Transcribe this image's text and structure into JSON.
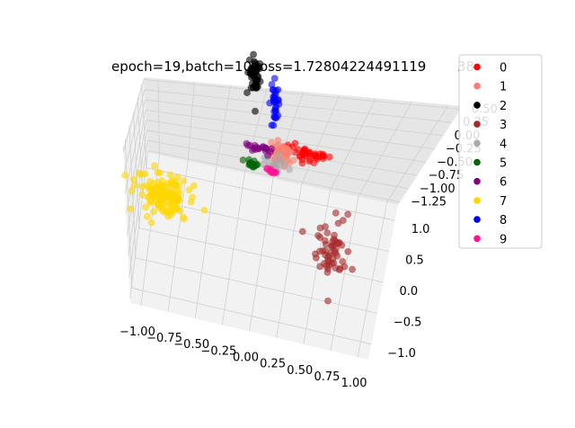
{
  "chart_data": {
    "type": "scatter",
    "title": "epoch=19,batch=10,loss=1.72804224491119",
    "title_hidden_suffix": "38",
    "projection": "3d",
    "xlabel": "",
    "ylabel": "",
    "zlabel": "",
    "xlim": [
      -1.1,
      1.1
    ],
    "ylim": [
      -1.25,
      1.25
    ],
    "zlim": [
      -1.3,
      0.65
    ],
    "x_ticks": [
      "−1.00",
      "−0.75",
      "−0.50",
      "−0.25",
      "0.00",
      "0.25",
      "0.50",
      "0.75",
      "1.00"
    ],
    "y_ticks": [
      "−1.0",
      "−0.5",
      "0.0",
      "0.5",
      "1.0"
    ],
    "z_ticks": [
      "−1.25",
      "−1.00",
      "−0.75",
      "−0.50",
      "−0.25",
      "0.00",
      "0.25",
      "0.50"
    ],
    "grid": true,
    "legend_position": "right",
    "series": [
      {
        "name": "0",
        "color": "#ff0000",
        "center": [
          0.45,
          0.15,
          0.05
        ],
        "spread": [
          0.1,
          0.05,
          0.03
        ],
        "count": 40
      },
      {
        "name": "1",
        "color": "#fa8072",
        "center": [
          0.22,
          0.1,
          0.0
        ],
        "spread": [
          0.06,
          0.05,
          0.05
        ],
        "count": 40
      },
      {
        "name": "2",
        "color": "#000000",
        "center": [
          -0.08,
          0.85,
          0.35
        ],
        "spread": [
          0.03,
          0.03,
          0.14
        ],
        "count": 45
      },
      {
        "name": "3",
        "color": "#a52a2a",
        "center": [
          0.72,
          -0.3,
          -0.8
        ],
        "spread": [
          0.08,
          0.06,
          0.18
        ],
        "count": 55
      },
      {
        "name": "4",
        "color": "#a9a9a9",
        "center": [
          0.2,
          0.05,
          -0.1
        ],
        "spread": [
          0.06,
          0.04,
          0.04
        ],
        "count": 15
      },
      {
        "name": "5",
        "color": "#006400",
        "center": [
          -0.05,
          0.05,
          -0.18
        ],
        "spread": [
          0.04,
          0.02,
          0.02
        ],
        "count": 15
      },
      {
        "name": "6",
        "color": "#800080",
        "center": [
          0.02,
          0.05,
          0.05
        ],
        "spread": [
          0.06,
          0.02,
          0.02
        ],
        "count": 20
      },
      {
        "name": "7",
        "color": "#ffd700",
        "center": [
          -0.85,
          -0.3,
          -0.55
        ],
        "spread": [
          0.12,
          0.1,
          0.1
        ],
        "count": 140
      },
      {
        "name": "8",
        "color": "#0000ff",
        "center": [
          0.1,
          0.8,
          0.05
        ],
        "spread": [
          0.02,
          0.03,
          0.14
        ],
        "count": 30
      },
      {
        "name": "9",
        "color": "#ff1493",
        "center": [
          0.15,
          0.0,
          -0.18
        ],
        "spread": [
          0.03,
          0.02,
          0.02
        ],
        "count": 12
      }
    ]
  }
}
